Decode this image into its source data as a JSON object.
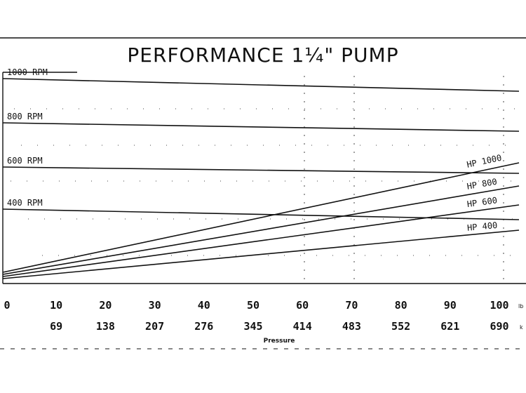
{
  "chart_data": {
    "type": "line",
    "title": "PERFORMANCE  1¼\"  PUMP",
    "xlabel": "Pressure",
    "x_ticks_primary": [
      "0",
      "10",
      "20",
      "30",
      "40",
      "50",
      "60",
      "70",
      "80",
      "90",
      "100"
    ],
    "x_ticks_secondary": [
      "",
      "69",
      "138",
      "207",
      "276",
      "345",
      "414",
      "483",
      "552",
      "621",
      "690"
    ],
    "x_unit_primary": "lb",
    "x_unit_secondary": "k",
    "xlim": [
      0,
      100
    ],
    "ylim": [
      0,
      1
    ],
    "grid": true,
    "series": [
      {
        "name": "1000 RPM",
        "x": [
          0,
          100
        ],
        "y": [
          0.97,
          0.91
        ]
      },
      {
        "name": "800 RPM",
        "x": [
          0,
          100
        ],
        "y": [
          0.76,
          0.72
        ]
      },
      {
        "name": "600 RPM",
        "x": [
          0,
          100
        ],
        "y": [
          0.55,
          0.52
        ]
      },
      {
        "name": "400 RPM",
        "x": [
          0,
          100
        ],
        "y": [
          0.35,
          0.3
        ]
      },
      {
        "name": "HP 1000",
        "x": [
          0,
          100
        ],
        "y": [
          0.05,
          0.57
        ]
      },
      {
        "name": "HP 800",
        "x": [
          0,
          100
        ],
        "y": [
          0.04,
          0.46
        ]
      },
      {
        "name": "HP 600",
        "x": [
          0,
          100
        ],
        "y": [
          0.03,
          0.37
        ]
      },
      {
        "name": "HP 400",
        "x": [
          0,
          100
        ],
        "y": [
          0.02,
          0.25
        ]
      }
    ]
  }
}
